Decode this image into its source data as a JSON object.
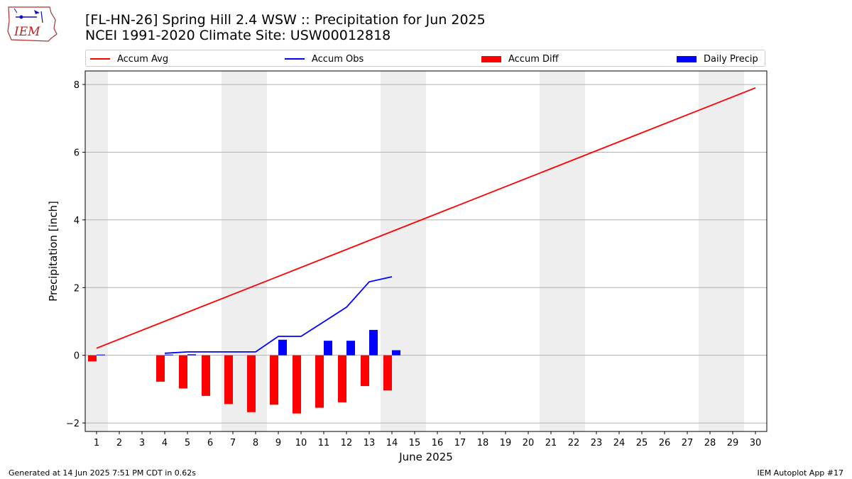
{
  "header": {
    "title_line1": "[FL-HN-26] Spring Hill 2.4 WSW :: Precipitation for Jun 2025",
    "title_line2": "NCEI 1991-2020 Climate Site: USW00012818",
    "logo_text": "IEM"
  },
  "footer": {
    "left": "Generated at 14 Jun 2025 7:51 PM CDT in 0.62s",
    "right": "IEM Autoplot App #17"
  },
  "chart_data": {
    "type": "line",
    "xlabel": "June 2025",
    "ylabel": "Precipitation [inch]",
    "xlim": [
      0.5,
      30.5
    ],
    "ylim": [
      -2.25,
      8.4
    ],
    "yticks": [
      -2,
      0,
      2,
      4,
      6,
      8
    ],
    "xticks": [
      1,
      2,
      3,
      4,
      5,
      6,
      7,
      8,
      9,
      10,
      11,
      12,
      13,
      14,
      15,
      16,
      17,
      18,
      19,
      20,
      21,
      22,
      23,
      24,
      25,
      26,
      27,
      28,
      29,
      30
    ],
    "grid": "horizontal",
    "legend_position": "top",
    "weekend_shading": [
      [
        0.5,
        1.5
      ],
      [
        6.5,
        8.5
      ],
      [
        13.5,
        15.5
      ],
      [
        20.5,
        22.5
      ],
      [
        27.5,
        29.5
      ]
    ],
    "legend": [
      {
        "label": "Accum Avg",
        "kind": "line",
        "color": "#ff0000"
      },
      {
        "label": "Accum Obs",
        "kind": "line",
        "color": "#0000ff"
      },
      {
        "label": "Accum Diff",
        "kind": "bar",
        "color": "#ff0000"
      },
      {
        "label": "Daily Precip",
        "kind": "bar",
        "color": "#0000ff"
      }
    ],
    "series": [
      {
        "name": "Accum Avg",
        "kind": "line",
        "color": "#ff0000",
        "x": [
          1,
          30
        ],
        "values": [
          0.21,
          7.9
        ]
      },
      {
        "name": "Accum Obs",
        "kind": "line",
        "color": "#0000ff",
        "x": [
          4,
          5,
          6,
          7,
          8,
          9,
          10,
          11,
          12,
          13,
          14
        ],
        "values": [
          0.06,
          0.1,
          0.1,
          0.1,
          0.1,
          0.56,
          0.56,
          0.99,
          1.42,
          2.17,
          2.32
        ]
      },
      {
        "name": "Accum Diff",
        "kind": "bar",
        "color": "#ff0000",
        "x": [
          1,
          4,
          5,
          6,
          7,
          8,
          9,
          10,
          11,
          12,
          13,
          14
        ],
        "values": [
          -0.18,
          -0.78,
          -0.98,
          -1.2,
          -1.44,
          -1.68,
          -1.46,
          -1.72,
          -1.55,
          -1.39,
          -0.91,
          -1.04
        ]
      },
      {
        "name": "Daily Precip",
        "kind": "bar",
        "color": "#0000ff",
        "x": [
          1,
          4,
          5,
          9,
          11,
          12,
          13,
          14
        ],
        "values": [
          0.01,
          0.01,
          0.03,
          0.46,
          0.43,
          0.43,
          0.75,
          0.15
        ]
      }
    ]
  }
}
